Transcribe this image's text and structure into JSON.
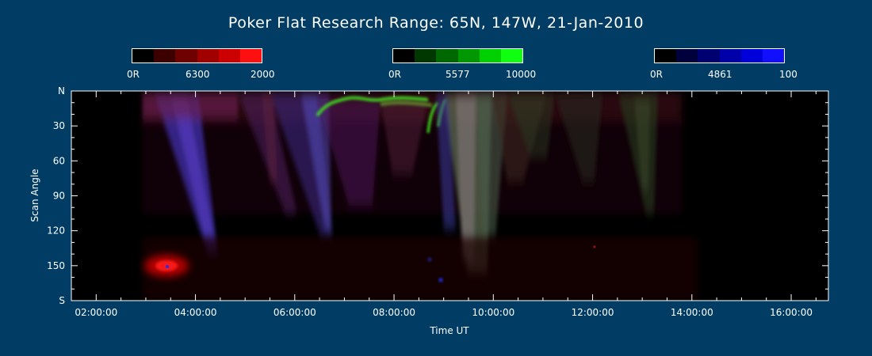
{
  "chart_data": {
    "type": "heatmap",
    "title": "Poker Flat Research Range: 65N, 147W, 21-Jan-2010",
    "xlabel": "Time UT",
    "ylabel": "Scan Angle",
    "x_tick_labels": [
      "02:00:00",
      "04:00:00",
      "06:00:00",
      "08:00:00",
      "10:00:00",
      "12:00:00",
      "14:00:00",
      "16:00:00"
    ],
    "x_tick_hours": [
      2,
      4,
      6,
      8,
      10,
      12,
      14,
      16
    ],
    "xlim_hours": [
      1.5,
      16.75
    ],
    "y_tick_labels": [
      "N",
      "30",
      "60",
      "90",
      "120",
      "150",
      "S"
    ],
    "y_tick_values": [
      0,
      30,
      60,
      90,
      120,
      150,
      180
    ],
    "ylim": [
      0,
      180
    ],
    "data_start_hour": 3.0,
    "data_end_hour": 16.3,
    "colorbars": [
      {
        "wavelength": "6300",
        "min_label": "0R",
        "max_label": "2000",
        "colors": [
          "#000000",
          "#3c0000",
          "#6e0000",
          "#a00000",
          "#cc0000",
          "#ff1010"
        ]
      },
      {
        "wavelength": "5577",
        "min_label": "0R",
        "max_label": "10000",
        "colors": [
          "#000000",
          "#003800",
          "#006800",
          "#009800",
          "#00d000",
          "#10ff10"
        ]
      },
      {
        "wavelength": "4861",
        "min_label": "0R",
        "max_label": "100",
        "colors": [
          "#000000",
          "#00003c",
          "#000070",
          "#0000a8",
          "#0000d8",
          "#1010ff"
        ]
      }
    ]
  }
}
